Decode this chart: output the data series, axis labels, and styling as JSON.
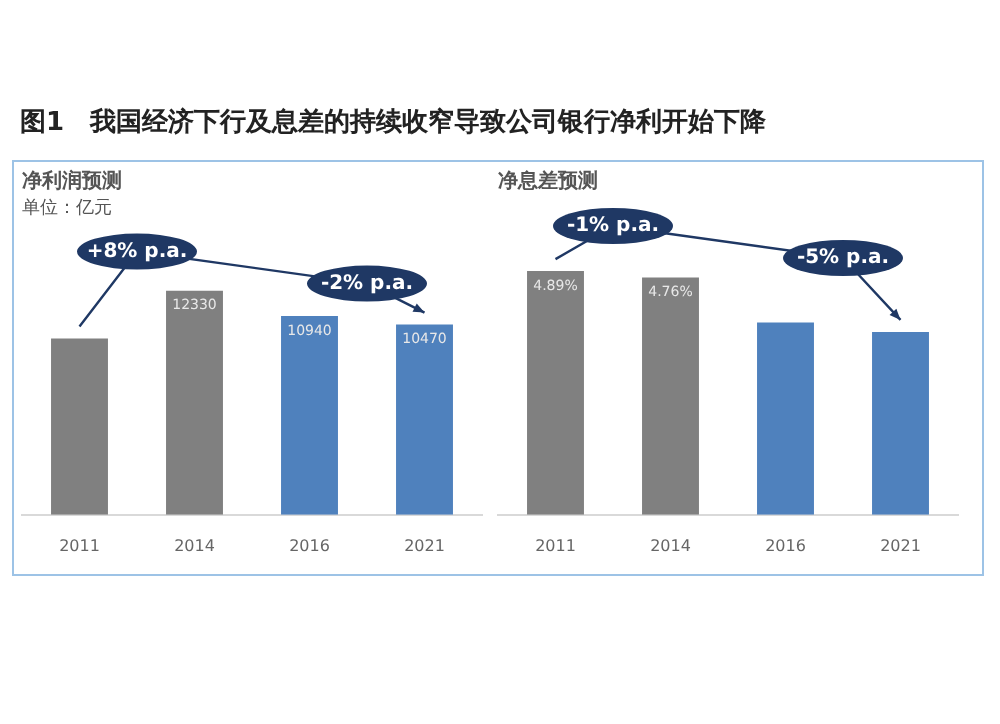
{
  "chart_data": [
    {
      "type": "bar",
      "title": "图1　我国经济下行及息差的持续收窄导致公司银行净利开始下降",
      "subtitle": "净利润预测",
      "ylabel": "单位：亿元",
      "categories": [
        "2011",
        "2014",
        "2016",
        "2021"
      ],
      "values": [
        9700,
        12330,
        10940,
        10470
      ],
      "value_labels": [
        null,
        "12330",
        "10940",
        "10470"
      ],
      "colors": [
        "#808080",
        "#808080",
        "#4f81bd",
        "#4f81bd"
      ],
      "tick_labels": "x",
      "annotations": [
        "+8% p.a.",
        "-2% p.a."
      ]
    },
    {
      "type": "bar",
      "subtitle": "净息差预测",
      "categories": [
        "2011",
        "2014",
        "2016",
        "2021"
      ],
      "values": [
        4.89,
        4.76,
        3.86,
        3.67
      ],
      "value_labels": [
        "4.89%",
        "4.76%",
        null,
        null
      ],
      "colors": [
        "#808080",
        "#808080",
        "#4f81bd",
        "#4f81bd"
      ],
      "tick_labels": "x",
      "annotations": [
        "-1% p.a.",
        "-5% p.a."
      ]
    }
  ]
}
